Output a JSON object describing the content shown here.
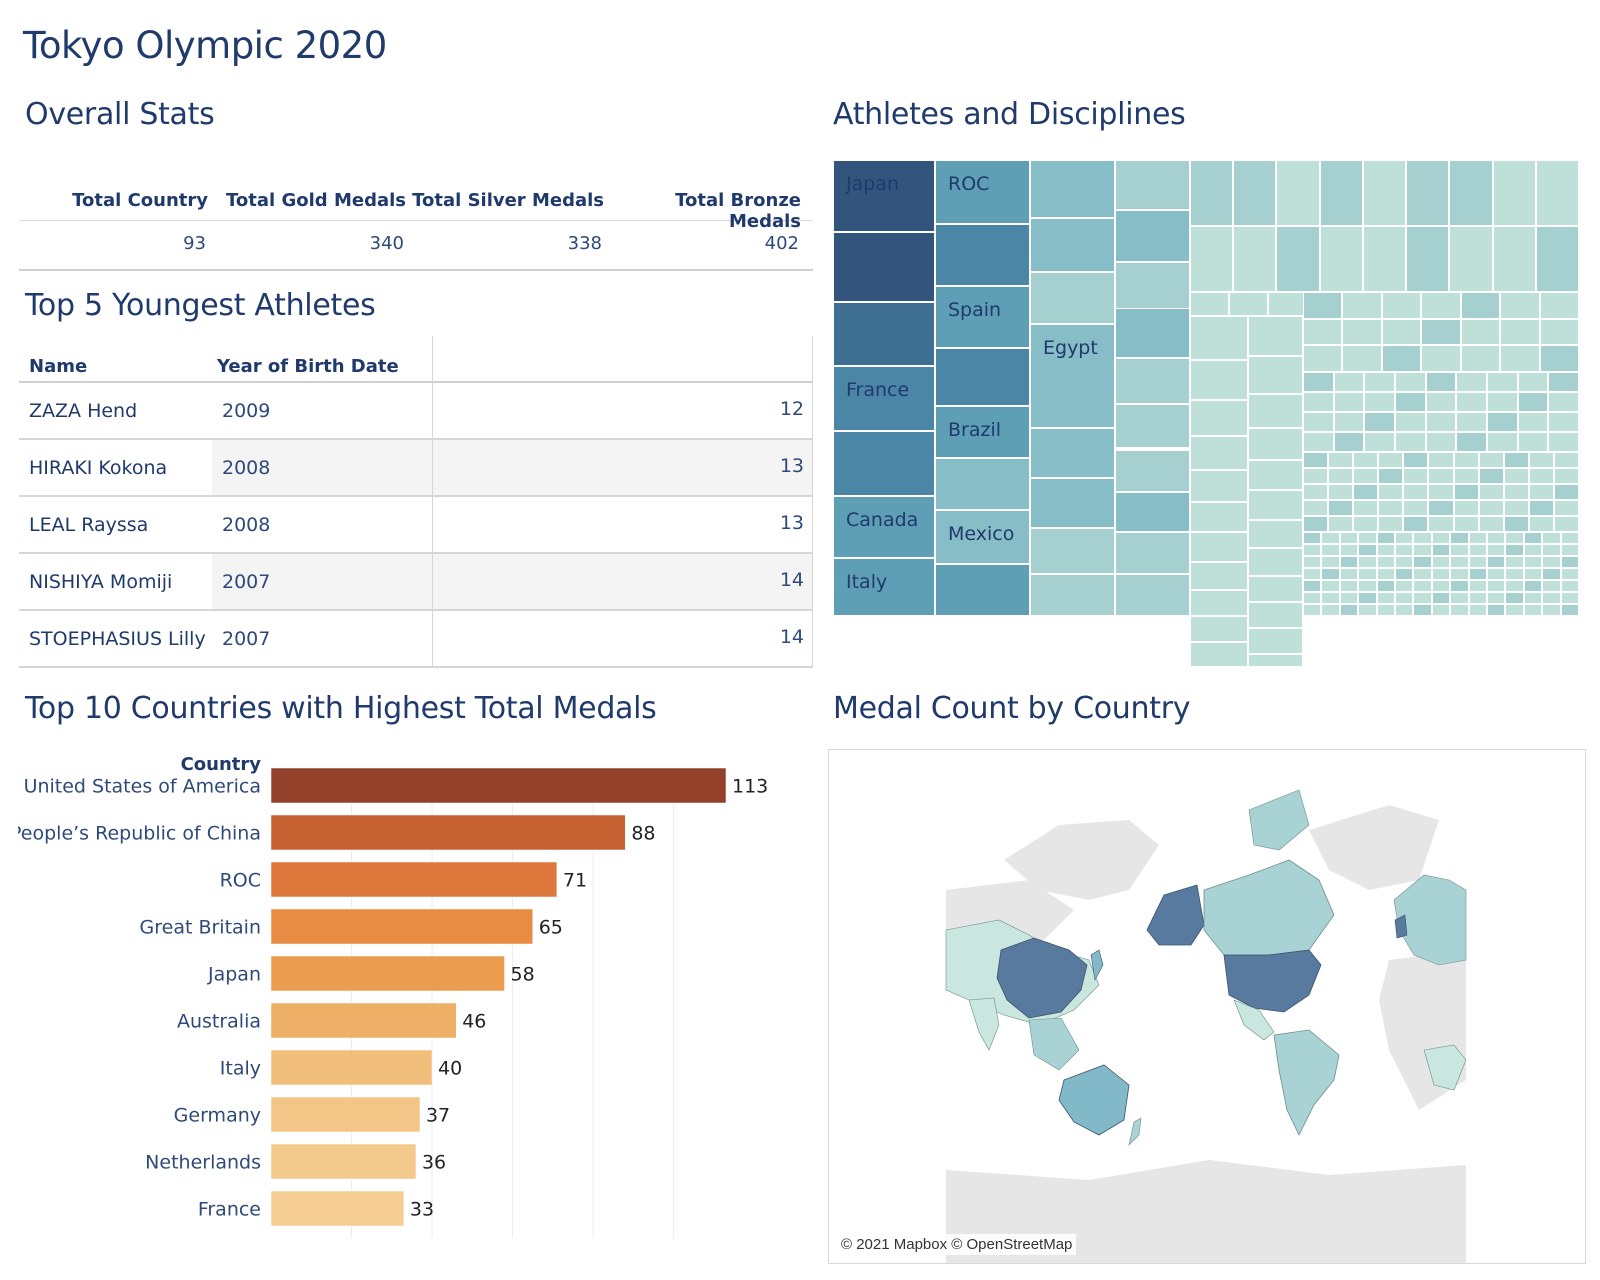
{
  "dashboard_title": "Tokyo Olympic 2020",
  "sections": {
    "overall": "Overall Stats",
    "youngest": "Top 5 Youngest Athletes",
    "disciplines": "Athletes and Disciplines",
    "top10": "Top 10 Countries with Highest Total Medals",
    "map": "Medal Count by Country"
  },
  "overall_stats": {
    "headers": [
      "Total Country",
      "Total Gold Medals",
      "Total Silver Medals",
      "Total Bronze Medals"
    ],
    "values": [
      "93",
      "340",
      "338",
      "402"
    ]
  },
  "youngest_athletes": {
    "headers": [
      "Name",
      "Year of Birth Date"
    ],
    "rows": [
      {
        "name": "ZAZA Hend",
        "year": "2009",
        "age": "12"
      },
      {
        "name": "HIRAKI Kokona",
        "year": "2008",
        "age": "13"
      },
      {
        "name": "LEAL Rayssa",
        "year": "2008",
        "age": "13"
      },
      {
        "name": "NISHIYA Momiji",
        "year": "2007",
        "age": "14"
      },
      {
        "name": "STOEPHASIUS Lilly",
        "year": "2007",
        "age": "14"
      }
    ]
  },
  "treemap_labels": [
    "Japan",
    "ROC",
    "Spain",
    "Egypt",
    "France",
    "Brazil",
    "Canada",
    "Mexico",
    "Italy"
  ],
  "treemap_colors": [
    "#33557d",
    "#3e6f93",
    "#4b86a6",
    "#5e9fb6",
    "#86bdc6",
    "#a6cfcf",
    "#bfe0d8"
  ],
  "chart_data": {
    "type": "bar",
    "ylabel": "Country",
    "categories": [
      "United States of America",
      "People’s Republic of China",
      "ROC",
      "Great Britain",
      "Japan",
      "Australia",
      "Italy",
      "Germany",
      "Netherlands",
      "France"
    ],
    "values": [
      113,
      88,
      71,
      65,
      58,
      46,
      40,
      37,
      36,
      33
    ],
    "colors": [
      "#93412a",
      "#c66232",
      "#de773b",
      "#e88c44",
      "#eb9c4f",
      "#eeb066",
      "#f1be7b",
      "#f3c586",
      "#f4c98c",
      "#f5cd92"
    ],
    "xlim": [
      0,
      113
    ],
    "grid": true
  },
  "map": {
    "attribution": "© 2021 Mapbox © OpenStreetMap",
    "colors": {
      "dark": "#587a9e",
      "mid": "#82b9c8",
      "light": "#a9d2d4",
      "pale": "#c9e6df",
      "none": "#e6e6e6"
    }
  }
}
